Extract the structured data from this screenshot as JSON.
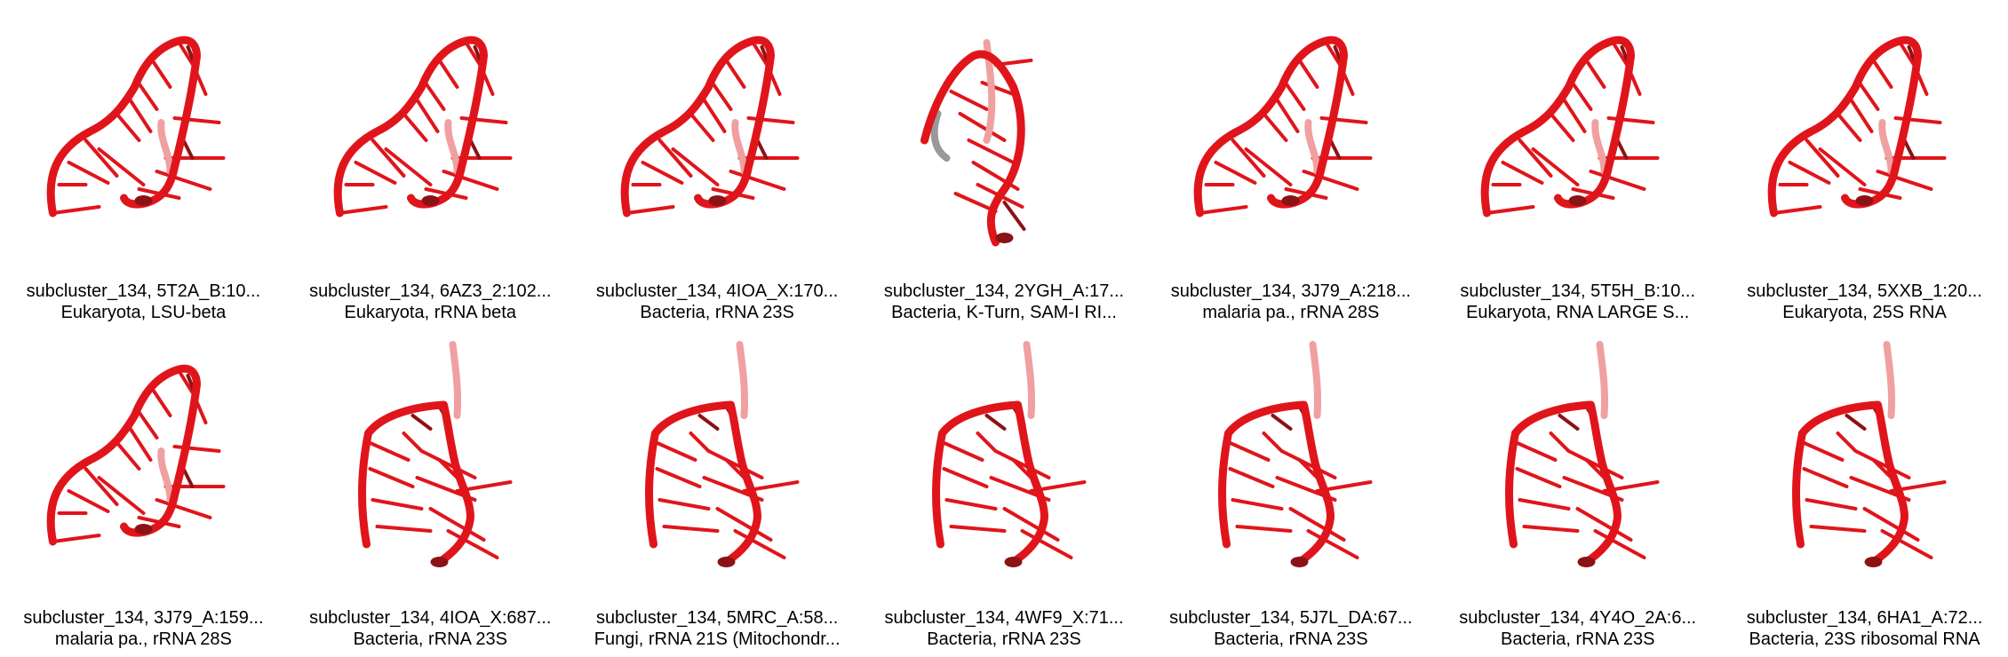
{
  "structures": [
    {
      "line1": "subcluster_134, 5T2A_B:10...",
      "line2": "Eukaryota, LSU-beta",
      "shape": "A",
      "colors": {
        "main": "#e0151b",
        "dark": "#8b1215",
        "light": "#f0a0a0"
      }
    },
    {
      "line1": "subcluster_134, 6AZ3_2:102...",
      "line2": "Eukaryota, rRNA beta",
      "shape": "A",
      "colors": {
        "main": "#e0151b",
        "dark": "#8b1215",
        "light": "#f0a0a0"
      }
    },
    {
      "line1": "subcluster_134, 4IOA_X:170...",
      "line2": "Bacteria, rRNA 23S",
      "shape": "A",
      "colors": {
        "main": "#e0151b",
        "dark": "#8b1215",
        "light": "#f0a0a0"
      }
    },
    {
      "line1": "subcluster_134, 2YGH_A:17...",
      "line2": "Bacteria, K-Turn, SAM-I RI...",
      "shape": "C",
      "colors": {
        "main": "#e0151b",
        "dark": "#8b1215",
        "light": "#f0a0a0",
        "grey": "#999999"
      }
    },
    {
      "line1": "subcluster_134, 3J79_A:218...",
      "line2": "malaria pa., rRNA 28S",
      "shape": "A",
      "colors": {
        "main": "#e0151b",
        "dark": "#8b1215",
        "light": "#f0a0a0"
      }
    },
    {
      "line1": "subcluster_134, 5T5H_B:10...",
      "line2": "Eukaryota, RNA LARGE S...",
      "shape": "A",
      "colors": {
        "main": "#e0151b",
        "dark": "#8b1215",
        "light": "#f0a0a0"
      }
    },
    {
      "line1": "subcluster_134, 5XXB_1:20...",
      "line2": "Eukaryota, 25S RNA",
      "shape": "A",
      "colors": {
        "main": "#e0151b",
        "dark": "#8b1215",
        "light": "#f0a0a0"
      }
    },
    {
      "line1": "subcluster_134, 3J79_A:159...",
      "line2": "malaria pa., rRNA 28S",
      "shape": "A",
      "colors": {
        "main": "#e0151b",
        "dark": "#8b1215",
        "light": "#f0a0a0"
      }
    },
    {
      "line1": "subcluster_134, 4IOA_X:687...",
      "line2": "Bacteria, rRNA 23S",
      "shape": "B",
      "colors": {
        "main": "#e0151b",
        "dark": "#8b1215",
        "light": "#f0a0a0"
      }
    },
    {
      "line1": "subcluster_134, 5MRC_A:58...",
      "line2": "Fungi, rRNA 21S (Mitochondr...",
      "shape": "B",
      "colors": {
        "main": "#e0151b",
        "dark": "#8b1215",
        "light": "#f0a0a0"
      }
    },
    {
      "line1": "subcluster_134, 4WF9_X:71...",
      "line2": "Bacteria, rRNA 23S",
      "shape": "B",
      "colors": {
        "main": "#e0151b",
        "dark": "#8b1215",
        "light": "#f0a0a0"
      }
    },
    {
      "line1": "subcluster_134, 5J7L_DA:67...",
      "line2": "Bacteria, rRNA 23S",
      "shape": "B",
      "colors": {
        "main": "#e0151b",
        "dark": "#8b1215",
        "light": "#f0a0a0"
      }
    },
    {
      "line1": "subcluster_134, 4Y4O_2A:6...",
      "line2": "Bacteria, rRNA 23S",
      "shape": "B",
      "colors": {
        "main": "#e0151b",
        "dark": "#8b1215",
        "light": "#f0a0a0"
      }
    },
    {
      "line1": "subcluster_134, 6HA1_A:72...",
      "line2": "Bacteria, 23S ribosomal RNA",
      "shape": "B",
      "colors": {
        "main": "#e0151b",
        "dark": "#8b1215",
        "light": "#f0a0a0"
      }
    }
  ]
}
